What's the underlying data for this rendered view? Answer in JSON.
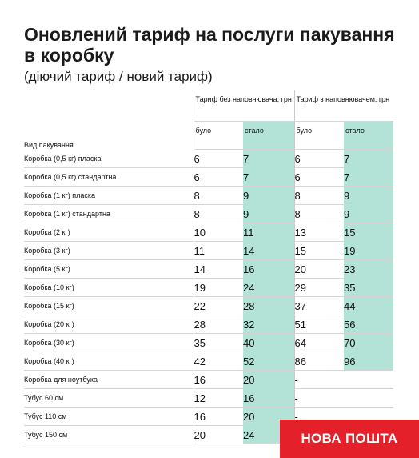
{
  "header": {
    "title": "Оновлений тариф на послуги пакування в коробку",
    "subtitle": "(діючий тариф / новий тариф)"
  },
  "table": {
    "kind_label": "Вид пакування",
    "group_without": "Тариф без наповнювача, грн",
    "group_with": "Тариф з наповнювачем, грн",
    "was_label": "було",
    "became_label": "стало",
    "rows": [
      {
        "name": "Коробка (0,5 кг) пласка",
        "a_was": "6",
        "a_new": "7",
        "b_was": "6",
        "b_new": "7"
      },
      {
        "name": "Коробка (0,5 кг) стандартна",
        "a_was": "6",
        "a_new": "7",
        "b_was": "6",
        "b_new": "7"
      },
      {
        "name": "Коробка (1 кг) пласка",
        "a_was": "8",
        "a_new": "9",
        "b_was": "8",
        "b_new": "9"
      },
      {
        "name": "Коробка (1 кг) стандартна",
        "a_was": "8",
        "a_new": "9",
        "b_was": "8",
        "b_new": "9"
      },
      {
        "name": "Коробка (2 кг)",
        "a_was": "10",
        "a_new": "11",
        "b_was": "13",
        "b_new": "15"
      },
      {
        "name": "Коробка (3 кг)",
        "a_was": "11",
        "a_new": "14",
        "b_was": "15",
        "b_new": "19"
      },
      {
        "name": "Коробка (5 кг)",
        "a_was": "14",
        "a_new": "16",
        "b_was": "20",
        "b_new": "23"
      },
      {
        "name": "Коробка (10 кг)",
        "a_was": "19",
        "a_new": "24",
        "b_was": "29",
        "b_new": "35"
      },
      {
        "name": "Коробка (15 кг)",
        "a_was": "22",
        "a_new": "28",
        "b_was": "37",
        "b_new": "44"
      },
      {
        "name": "Коробка (20 кг)",
        "a_was": "28",
        "a_new": "32",
        "b_was": "51",
        "b_new": "56"
      },
      {
        "name": "Коробка (30 кг)",
        "a_was": "35",
        "a_new": "40",
        "b_was": "64",
        "b_new": "70"
      },
      {
        "name": "Коробка (40 кг)",
        "a_was": "42",
        "a_new": "52",
        "b_was": "86",
        "b_new": "96"
      },
      {
        "name": "Коробка для ноутбука",
        "a_was": "16",
        "a_new": "20",
        "b_was": "-",
        "b_new": ""
      },
      {
        "name": "Тубус 60 см",
        "a_was": "12",
        "a_new": "16",
        "b_was": "-",
        "b_new": ""
      },
      {
        "name": "Тубус 110 см",
        "a_was": "16",
        "a_new": "20",
        "b_was": "-",
        "b_new": ""
      },
      {
        "name": "Тубус 150 см",
        "a_was": "20",
        "a_new": "24",
        "b_was": "-",
        "b_new": ""
      }
    ]
  },
  "logo": {
    "text": "НОВА ПОШТА",
    "color": "#e4202a"
  },
  "colors": {
    "highlight": "#b3e3d6"
  }
}
